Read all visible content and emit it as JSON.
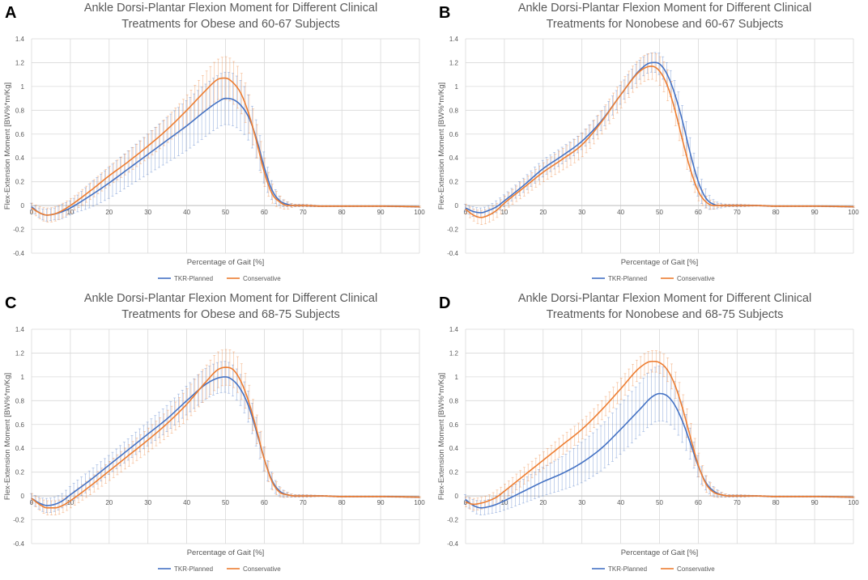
{
  "figure": {
    "series_colors": {
      "TKR-Planned": "#4472C4",
      "Conservative": "#ED7D31"
    },
    "grid_color": "#d9d9d9"
  },
  "chart_data": [
    {
      "panel": "A",
      "type": "line",
      "title_line1": "Ankle Dorsi-Plantar Flexion Moment for Different Clinical",
      "title_line2": "Treatments for Obese and 60-67 Subjects",
      "xlabel": "Percentage of Gait [%]",
      "ylabel": "Flex-Extension Moment [BW%*m/Kg]",
      "xlim": [
        0,
        100
      ],
      "ylim": [
        -0.4,
        1.4
      ],
      "xticks": [
        "0",
        "10",
        "20",
        "30",
        "40",
        "50",
        "60",
        "70",
        "80",
        "90",
        "100"
      ],
      "yticks": [
        "1.4",
        "1.2",
        "1",
        "0.8",
        "0.6",
        "0.4",
        "0.2",
        "0",
        "-0.2",
        "-0.4"
      ],
      "legend": [
        "TKR-Planned",
        "Conservative"
      ],
      "series": [
        {
          "name": "TKR-Planned",
          "x": [
            0,
            2,
            4,
            6,
            8,
            10,
            15,
            20,
            25,
            30,
            35,
            40,
            45,
            48,
            50,
            52,
            54,
            56,
            58,
            60,
            62,
            64,
            66,
            68,
            70,
            75,
            80,
            90,
            100
          ],
          "values": [
            -0.01,
            -0.06,
            -0.08,
            -0.07,
            -0.05,
            -0.02,
            0.08,
            0.19,
            0.31,
            0.43,
            0.55,
            0.67,
            0.8,
            0.87,
            0.9,
            0.89,
            0.84,
            0.74,
            0.56,
            0.32,
            0.13,
            0.04,
            0.01,
            0.0,
            0.0,
            -0.005,
            -0.005,
            -0.005,
            -0.01
          ],
          "error": [
            0.03,
            0.04,
            0.05,
            0.05,
            0.06,
            0.06,
            0.1,
            0.13,
            0.15,
            0.17,
            0.19,
            0.21,
            0.22,
            0.22,
            0.22,
            0.22,
            0.21,
            0.19,
            0.16,
            0.13,
            0.08,
            0.04,
            0.02,
            0.01,
            0.01,
            0.005,
            0.005,
            0.005,
            0.005
          ]
        },
        {
          "name": "Conservative",
          "x": [
            0,
            2,
            4,
            6,
            8,
            10,
            15,
            20,
            25,
            30,
            35,
            40,
            45,
            48,
            50,
            52,
            54,
            56,
            58,
            60,
            62,
            64,
            66,
            68,
            70,
            75,
            80,
            90,
            100
          ],
          "values": [
            -0.02,
            -0.06,
            -0.08,
            -0.07,
            -0.04,
            0.0,
            0.12,
            0.25,
            0.37,
            0.5,
            0.64,
            0.8,
            0.97,
            1.06,
            1.07,
            1.03,
            0.94,
            0.77,
            0.54,
            0.28,
            0.1,
            0.03,
            0.0,
            0.0,
            0.0,
            -0.005,
            -0.005,
            -0.005,
            -0.01
          ],
          "error": [
            0.04,
            0.05,
            0.06,
            0.06,
            0.06,
            0.06,
            0.07,
            0.08,
            0.09,
            0.1,
            0.11,
            0.13,
            0.16,
            0.17,
            0.18,
            0.18,
            0.17,
            0.16,
            0.14,
            0.12,
            0.08,
            0.05,
            0.03,
            0.01,
            0.01,
            0.005,
            0.005,
            0.005,
            0.005
          ]
        }
      ]
    },
    {
      "panel": "B",
      "type": "line",
      "title_line1": "Ankle Dorsi-Plantar Flexion Moment for Different Clinical",
      "title_line2": "Treatments for Nonobese and 60-67 Subjects",
      "xlabel": "Percentage of Gait [%]",
      "ylabel": "Flex-Extension Moment [BW%*m/Kg]",
      "xlim": [
        0,
        100
      ],
      "ylim": [
        -0.4,
        1.4
      ],
      "xticks": [
        "0",
        "10",
        "20",
        "30",
        "40",
        "50",
        "60",
        "70",
        "80",
        "90",
        "100"
      ],
      "yticks": [
        "1.4",
        "1.2",
        "1",
        "0.8",
        "0.6",
        "0.4",
        "0.2",
        "0",
        "-0.2",
        "-0.4"
      ],
      "legend": [
        "TKR-Planned",
        "Conservative"
      ],
      "series": [
        {
          "name": "TKR-Planned",
          "x": [
            0,
            2,
            4,
            6,
            8,
            10,
            15,
            20,
            25,
            30,
            35,
            40,
            45,
            48,
            50,
            52,
            54,
            56,
            58,
            60,
            62,
            64,
            66,
            68,
            70,
            75,
            80,
            90,
            100
          ],
          "values": [
            -0.02,
            -0.05,
            -0.06,
            -0.04,
            -0.01,
            0.04,
            0.17,
            0.31,
            0.42,
            0.54,
            0.71,
            0.93,
            1.14,
            1.2,
            1.19,
            1.1,
            0.93,
            0.7,
            0.43,
            0.2,
            0.06,
            0.01,
            0.0,
            0.0,
            0.0,
            0.0,
            -0.005,
            -0.005,
            -0.01
          ],
          "error": [
            0.03,
            0.04,
            0.04,
            0.04,
            0.05,
            0.05,
            0.06,
            0.07,
            0.07,
            0.07,
            0.08,
            0.08,
            0.08,
            0.08,
            0.09,
            0.1,
            0.12,
            0.14,
            0.14,
            0.12,
            0.08,
            0.04,
            0.02,
            0.01,
            0.01,
            0.005,
            0.005,
            0.005,
            0.005
          ]
        },
        {
          "name": "Conservative",
          "x": [
            0,
            2,
            4,
            6,
            8,
            10,
            15,
            20,
            25,
            30,
            35,
            40,
            45,
            48,
            50,
            52,
            54,
            56,
            58,
            60,
            62,
            64,
            66,
            68,
            70,
            75,
            80,
            90,
            100
          ],
          "values": [
            -0.03,
            -0.08,
            -0.1,
            -0.08,
            -0.04,
            0.02,
            0.15,
            0.28,
            0.39,
            0.51,
            0.7,
            0.93,
            1.13,
            1.17,
            1.13,
            1.01,
            0.8,
            0.54,
            0.3,
            0.12,
            0.03,
            0.0,
            0.0,
            0.0,
            0.0,
            0.0,
            -0.005,
            -0.005,
            -0.01
          ],
          "error": [
            0.04,
            0.05,
            0.06,
            0.06,
            0.06,
            0.06,
            0.07,
            0.08,
            0.09,
            0.1,
            0.1,
            0.11,
            0.11,
            0.11,
            0.12,
            0.13,
            0.13,
            0.12,
            0.1,
            0.08,
            0.05,
            0.03,
            0.01,
            0.01,
            0.01,
            0.005,
            0.005,
            0.005,
            0.005
          ]
        }
      ]
    },
    {
      "panel": "C",
      "type": "line",
      "title_line1": "Ankle Dorsi-Plantar Flexion Moment for Different Clinical",
      "title_line2": "Treatments for Obese and 68-75 Subjects",
      "xlabel": "Percentage of Gait [%]",
      "ylabel": "Flex-Extension Moment [BW%*m/Kg]",
      "xlim": [
        0,
        100
      ],
      "ylim": [
        -0.4,
        1.4
      ],
      "xticks": [
        "0",
        "10",
        "20",
        "30",
        "40",
        "50",
        "60",
        "70",
        "80",
        "90",
        "100"
      ],
      "yticks": [
        "1.4",
        "1.2",
        "1",
        "0.8",
        "0.6",
        "0.4",
        "0.2",
        "0",
        "-0.2",
        "-0.4"
      ],
      "legend": [
        "TKR-Planned",
        "Conservative"
      ],
      "series": [
        {
          "name": "TKR-Planned",
          "x": [
            0,
            2,
            4,
            6,
            8,
            10,
            15,
            20,
            25,
            30,
            35,
            40,
            45,
            48,
            50,
            52,
            54,
            56,
            58,
            60,
            62,
            64,
            66,
            68,
            70,
            75,
            80,
            90,
            100
          ],
          "values": [
            -0.02,
            -0.06,
            -0.08,
            -0.07,
            -0.04,
            0.01,
            0.13,
            0.26,
            0.39,
            0.52,
            0.65,
            0.8,
            0.94,
            0.99,
            1.0,
            0.97,
            0.89,
            0.75,
            0.54,
            0.31,
            0.13,
            0.04,
            0.01,
            0.0,
            0.0,
            0.0,
            -0.005,
            -0.005,
            -0.01
          ],
          "error": [
            0.04,
            0.05,
            0.06,
            0.06,
            0.06,
            0.07,
            0.08,
            0.08,
            0.09,
            0.1,
            0.11,
            0.12,
            0.13,
            0.13,
            0.13,
            0.13,
            0.13,
            0.13,
            0.12,
            0.1,
            0.07,
            0.04,
            0.02,
            0.01,
            0.01,
            0.005,
            0.005,
            0.005,
            0.005
          ]
        },
        {
          "name": "Conservative",
          "x": [
            0,
            2,
            4,
            6,
            8,
            10,
            15,
            20,
            25,
            30,
            35,
            40,
            45,
            48,
            50,
            52,
            54,
            56,
            58,
            60,
            62,
            64,
            66,
            68,
            70,
            75,
            80,
            90,
            100
          ],
          "values": [
            -0.02,
            -0.07,
            -0.1,
            -0.1,
            -0.08,
            -0.04,
            0.08,
            0.21,
            0.34,
            0.47,
            0.61,
            0.77,
            0.96,
            1.06,
            1.08,
            1.06,
            0.96,
            0.79,
            0.56,
            0.31,
            0.12,
            0.03,
            0.01,
            0.0,
            0.0,
            0.0,
            -0.005,
            -0.005,
            -0.01
          ],
          "error": [
            0.04,
            0.05,
            0.06,
            0.06,
            0.06,
            0.06,
            0.07,
            0.08,
            0.09,
            0.1,
            0.11,
            0.13,
            0.14,
            0.15,
            0.15,
            0.15,
            0.15,
            0.14,
            0.12,
            0.1,
            0.07,
            0.04,
            0.02,
            0.01,
            0.01,
            0.005,
            0.005,
            0.005,
            0.005
          ]
        }
      ]
    },
    {
      "panel": "D",
      "type": "line",
      "title_line1": "Ankle Dorsi-Plantar Flexion Moment for Different Clinical",
      "title_line2": "Treatments for Nonobese and 68-75 Subjects",
      "xlabel": "Percentage of Gait [%]",
      "ylabel": "Flex-Extension Moment [BW%*m/Kg]",
      "xlim": [
        0,
        100
      ],
      "ylim": [
        -0.4,
        1.4
      ],
      "xticks": [
        "0",
        "10",
        "20",
        "30",
        "40",
        "50",
        "60",
        "70",
        "80",
        "90",
        "100"
      ],
      "yticks": [
        "1.4",
        "1.2",
        "1",
        "0.8",
        "0.6",
        "0.4",
        "0.2",
        "0",
        "-0.2",
        "-0.4"
      ],
      "legend": [
        "TKR-Planned",
        "Conservative"
      ],
      "series": [
        {
          "name": "TKR-Planned",
          "x": [
            0,
            2,
            4,
            6,
            8,
            10,
            15,
            20,
            25,
            30,
            35,
            40,
            45,
            48,
            50,
            52,
            54,
            56,
            58,
            60,
            62,
            64,
            66,
            68,
            70,
            75,
            80,
            90,
            100
          ],
          "values": [
            -0.03,
            -0.08,
            -0.1,
            -0.09,
            -0.07,
            -0.04,
            0.04,
            0.12,
            0.19,
            0.28,
            0.4,
            0.56,
            0.73,
            0.83,
            0.86,
            0.84,
            0.76,
            0.62,
            0.44,
            0.25,
            0.11,
            0.04,
            0.01,
            0.0,
            0.0,
            0.0,
            -0.005,
            -0.005,
            -0.01
          ],
          "error": [
            0.04,
            0.05,
            0.06,
            0.06,
            0.07,
            0.08,
            0.1,
            0.12,
            0.14,
            0.17,
            0.19,
            0.21,
            0.22,
            0.23,
            0.23,
            0.22,
            0.2,
            0.17,
            0.13,
            0.09,
            0.06,
            0.04,
            0.02,
            0.01,
            0.01,
            0.005,
            0.005,
            0.005,
            0.005
          ]
        },
        {
          "name": "Conservative",
          "x": [
            0,
            2,
            4,
            6,
            8,
            10,
            15,
            20,
            25,
            30,
            35,
            40,
            45,
            48,
            50,
            52,
            54,
            56,
            58,
            60,
            62,
            64,
            66,
            68,
            70,
            75,
            80,
            90,
            100
          ],
          "values": [
            -0.05,
            -0.07,
            -0.06,
            -0.04,
            -0.01,
            0.04,
            0.17,
            0.3,
            0.43,
            0.56,
            0.72,
            0.9,
            1.08,
            1.13,
            1.12,
            1.06,
            0.93,
            0.73,
            0.49,
            0.26,
            0.1,
            0.03,
            0.01,
            0.0,
            0.0,
            0.0,
            -0.005,
            -0.005,
            -0.01
          ],
          "error": [
            0.04,
            0.05,
            0.05,
            0.05,
            0.06,
            0.06,
            0.07,
            0.07,
            0.08,
            0.08,
            0.08,
            0.09,
            0.09,
            0.09,
            0.09,
            0.1,
            0.11,
            0.12,
            0.12,
            0.1,
            0.07,
            0.04,
            0.02,
            0.01,
            0.01,
            0.005,
            0.005,
            0.005,
            0.005
          ]
        }
      ]
    }
  ]
}
